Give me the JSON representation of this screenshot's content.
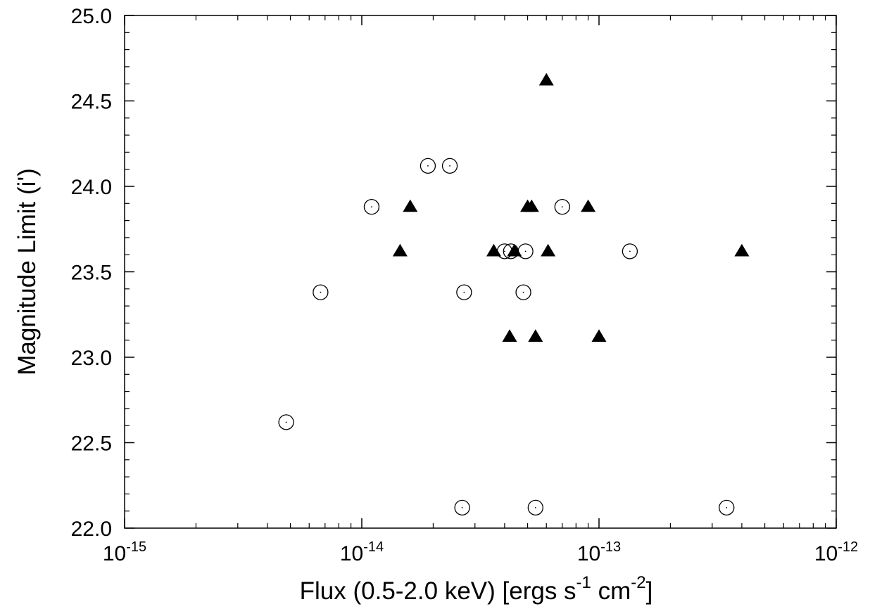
{
  "chart_data": {
    "type": "scatter",
    "title": "",
    "xlabel": {
      "parts": [
        "Flux (0.5-2.0 keV) [ergs s",
        "-1",
        " cm",
        "-2",
        "]"
      ]
    },
    "ylabel": "Magnitude Limit (i')",
    "x_scale": "log",
    "xlim": [
      1e-15,
      1e-12
    ],
    "ylim": [
      22.0,
      25.0
    ],
    "x_ticks": [
      {
        "value": 1e-15,
        "base": "10",
        "exp": "-15"
      },
      {
        "value": 1e-14,
        "base": "10",
        "exp": "-14"
      },
      {
        "value": 1e-13,
        "base": "10",
        "exp": "-13"
      },
      {
        "value": 1e-12,
        "base": "10",
        "exp": "-12"
      }
    ],
    "y_ticks": [
      "22.0",
      "22.5",
      "23.0",
      "23.5",
      "24.0",
      "24.5",
      "25.0"
    ],
    "grid": false,
    "series": [
      {
        "marker": "filled-triangle",
        "color": "#000000",
        "points": [
          {
            "x": 6e-14,
            "y": 24.62
          },
          {
            "x": 1.6e-14,
            "y": 23.88
          },
          {
            "x": 5e-14,
            "y": 23.88
          },
          {
            "x": 5.2e-14,
            "y": 23.88
          },
          {
            "x": 9e-14,
            "y": 23.88
          },
          {
            "x": 1.45e-14,
            "y": 23.62
          },
          {
            "x": 3.6e-14,
            "y": 23.62
          },
          {
            "x": 4.4e-14,
            "y": 23.62
          },
          {
            "x": 6.1e-14,
            "y": 23.62
          },
          {
            "x": 4e-13,
            "y": 23.62
          },
          {
            "x": 4.2e-14,
            "y": 23.12
          },
          {
            "x": 5.4e-14,
            "y": 23.12
          },
          {
            "x": 1e-13,
            "y": 23.12
          }
        ]
      },
      {
        "marker": "open-circle-dot",
        "color": "#000000",
        "points": [
          {
            "x": 1.9e-14,
            "y": 24.12
          },
          {
            "x": 2.35e-14,
            "y": 24.12
          },
          {
            "x": 1.1e-14,
            "y": 23.88
          },
          {
            "x": 7e-14,
            "y": 23.88
          },
          {
            "x": 4e-14,
            "y": 23.62
          },
          {
            "x": 4.25e-14,
            "y": 23.62
          },
          {
            "x": 4.9e-14,
            "y": 23.62
          },
          {
            "x": 1.35e-13,
            "y": 23.62
          },
          {
            "x": 6.7e-15,
            "y": 23.38
          },
          {
            "x": 2.7e-14,
            "y": 23.38
          },
          {
            "x": 4.8e-14,
            "y": 23.38
          },
          {
            "x": 4.8e-15,
            "y": 22.62
          },
          {
            "x": 2.65e-14,
            "y": 22.12
          },
          {
            "x": 5.4e-14,
            "y": 22.12
          },
          {
            "x": 3.45e-13,
            "y": 22.12
          }
        ]
      }
    ]
  }
}
